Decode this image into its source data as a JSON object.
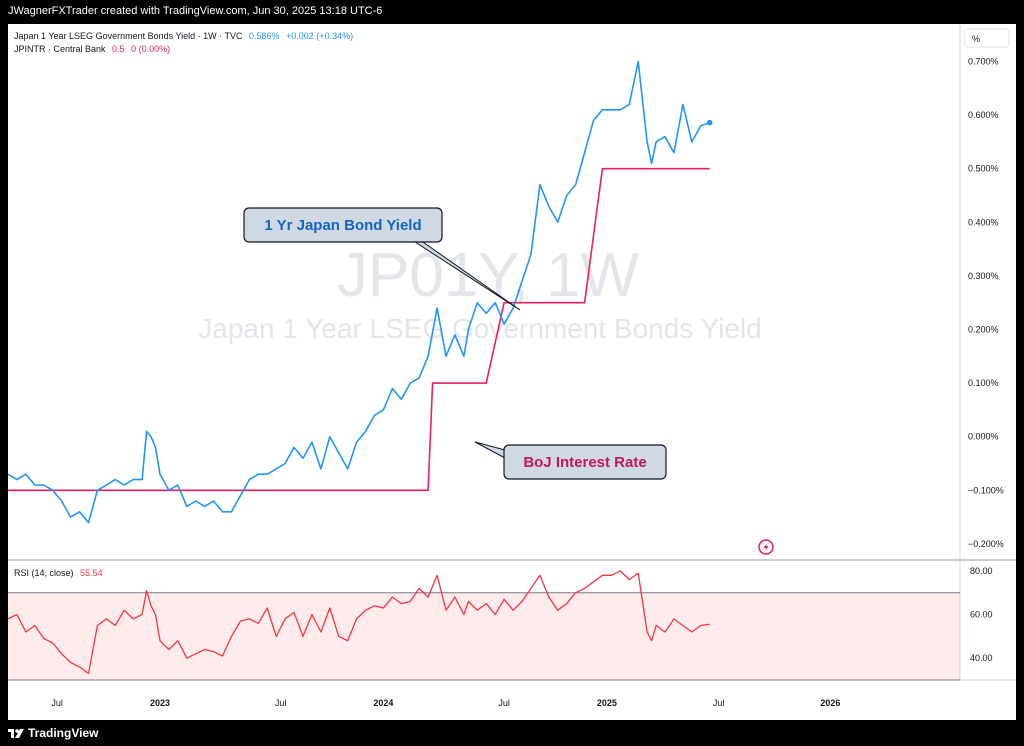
{
  "header": {
    "text": "JWagnerFXTrader created with TradingView.com, Jun 30, 2025 13:18 UTC-6"
  },
  "footer": {
    "logo": "TradingView",
    "logo_icon": "tradingview-logo-icon"
  },
  "legend": {
    "series1_prefix": "Japan 1 Year LSEG Government Bonds Yield · 1W · TVC",
    "series1_value": "0.586%",
    "series1_change": "+0.002 (+0.34%)",
    "series1_color": "#2196f3",
    "series2_prefix": "JPINTR · Central Bank",
    "series2_value": "0.5",
    "series2_change": "0 (0.00%)",
    "series2_color": "#e91e63"
  },
  "watermark": {
    "symbol": "JP01Y, 1W",
    "name": "Japan 1 Year LSEG Government Bonds Yield"
  },
  "annotations": {
    "bond": "1 Yr Japan Bond Yield",
    "boj": "BoJ Interest Rate"
  },
  "scale_unit": "%",
  "rsi": {
    "label": "RSI (14, close)",
    "value": "55.54",
    "color": "#f23645",
    "band": [
      30,
      70
    ],
    "yticks": [
      "80.00",
      "60.00",
      "40.00"
    ]
  },
  "chart_data": [
    {
      "type": "line",
      "title": "Japan 1 Year LSEG Government Bonds Yield · 1W · TVC",
      "ylabel": "%",
      "ylim": [
        -0.23,
        0.77
      ],
      "xlim": [
        2022.32,
        2026.58
      ],
      "x_ticks": [
        "Jul",
        "2023",
        "Jul",
        "2024",
        "Jul",
        "2025",
        "Jul",
        "2026"
      ],
      "y_ticks": [
        "0.700%",
        "0.600%",
        "0.500%",
        "0.400%",
        "0.300%",
        "0.200%",
        "0.100%",
        "0.000%",
        "−0.100%",
        "−0.200%"
      ],
      "series": [
        {
          "name": "Japan 1 Year LSEG Government Bonds Yield",
          "color": "#2196f3",
          "x": [
            2022.32,
            2022.36,
            2022.4,
            2022.44,
            2022.48,
            2022.52,
            2022.56,
            2022.6,
            2022.64,
            2022.68,
            2022.72,
            2022.76,
            2022.8,
            2022.84,
            2022.88,
            2022.92,
            2022.94,
            2022.96,
            2022.98,
            2023.0,
            2023.04,
            2023.08,
            2023.12,
            2023.16,
            2023.2,
            2023.24,
            2023.28,
            2023.32,
            2023.36,
            2023.4,
            2023.44,
            2023.48,
            2023.52,
            2023.56,
            2023.6,
            2023.64,
            2023.68,
            2023.72,
            2023.76,
            2023.8,
            2023.84,
            2023.88,
            2023.92,
            2023.96,
            2024.0,
            2024.04,
            2024.08,
            2024.12,
            2024.16,
            2024.2,
            2024.24,
            2024.28,
            2024.32,
            2024.36,
            2024.38,
            2024.42,
            2024.46,
            2024.5,
            2024.54,
            2024.58,
            2024.62,
            2024.66,
            2024.7,
            2024.74,
            2024.78,
            2024.82,
            2024.86,
            2024.9,
            2024.94,
            2024.98,
            2025.02,
            2025.06,
            2025.1,
            2025.14,
            2025.18,
            2025.2,
            2025.22,
            2025.26,
            2025.3,
            2025.34,
            2025.38,
            2025.42,
            2025.46
          ],
          "values": [
            -0.07,
            -0.08,
            -0.07,
            -0.09,
            -0.09,
            -0.1,
            -0.12,
            -0.15,
            -0.14,
            -0.16,
            -0.1,
            -0.09,
            -0.08,
            -0.09,
            -0.08,
            -0.08,
            0.01,
            0.0,
            -0.02,
            -0.07,
            -0.1,
            -0.09,
            -0.13,
            -0.12,
            -0.13,
            -0.12,
            -0.14,
            -0.14,
            -0.11,
            -0.08,
            -0.07,
            -0.07,
            -0.06,
            -0.05,
            -0.02,
            -0.04,
            -0.01,
            -0.06,
            0.0,
            -0.03,
            -0.06,
            -0.01,
            0.01,
            0.04,
            0.05,
            0.09,
            0.07,
            0.1,
            0.11,
            0.15,
            0.24,
            0.15,
            0.19,
            0.15,
            0.2,
            0.25,
            0.23,
            0.25,
            0.21,
            0.24,
            0.29,
            0.34,
            0.47,
            0.43,
            0.4,
            0.45,
            0.47,
            0.53,
            0.59,
            0.61,
            0.61,
            0.61,
            0.62,
            0.7,
            0.55,
            0.51,
            0.55,
            0.56,
            0.53,
            0.62,
            0.55,
            0.58,
            0.586
          ]
        },
        {
          "name": "JPINTR · Central Bank",
          "color": "#e91e63",
          "x": [
            2022.32,
            2024.2,
            2024.22,
            2024.46,
            2024.54,
            2024.9,
            2024.98,
            2025.46
          ],
          "values": [
            -0.1,
            -0.1,
            0.1,
            0.1,
            0.25,
            0.25,
            0.5,
            0.5
          ]
        }
      ]
    },
    {
      "type": "line",
      "title": "RSI (14, close)",
      "ylim": [
        30,
        85
      ],
      "xlim": [
        2022.32,
        2026.58
      ],
      "y_ticks": [
        "80.00",
        "60.00",
        "40.00"
      ],
      "series": [
        {
          "name": "RSI (14, close)",
          "color": "#f23645",
          "x": [
            2022.32,
            2022.36,
            2022.4,
            2022.44,
            2022.48,
            2022.52,
            2022.56,
            2022.6,
            2022.64,
            2022.68,
            2022.72,
            2022.76,
            2022.8,
            2022.84,
            2022.88,
            2022.92,
            2022.94,
            2022.96,
            2022.98,
            2023.0,
            2023.04,
            2023.08,
            2023.12,
            2023.16,
            2023.2,
            2023.24,
            2023.28,
            2023.32,
            2023.36,
            2023.4,
            2023.44,
            2023.48,
            2023.52,
            2023.56,
            2023.6,
            2023.64,
            2023.68,
            2023.72,
            2023.76,
            2023.8,
            2023.84,
            2023.88,
            2023.92,
            2023.96,
            2024.0,
            2024.04,
            2024.08,
            2024.12,
            2024.16,
            2024.2,
            2024.24,
            2024.28,
            2024.32,
            2024.36,
            2024.38,
            2024.42,
            2024.46,
            2024.5,
            2024.54,
            2024.58,
            2024.62,
            2024.66,
            2024.7,
            2024.74,
            2024.78,
            2024.82,
            2024.86,
            2024.9,
            2024.94,
            2024.98,
            2025.02,
            2025.06,
            2025.1,
            2025.14,
            2025.18,
            2025.2,
            2025.22,
            2025.26,
            2025.3,
            2025.34,
            2025.38,
            2025.42,
            2025.46
          ],
          "values": [
            58,
            60,
            52,
            55,
            49,
            47,
            42,
            38,
            36,
            33,
            55,
            58,
            55,
            62,
            58,
            60,
            71,
            64,
            60,
            48,
            44,
            48,
            40,
            42,
            44,
            43,
            41,
            50,
            57,
            58,
            56,
            63,
            50,
            58,
            61,
            50,
            60,
            52,
            63,
            50,
            48,
            58,
            62,
            64,
            63,
            68,
            65,
            66,
            72,
            68,
            78,
            62,
            68,
            60,
            66,
            62,
            65,
            60,
            67,
            62,
            66,
            72,
            78,
            68,
            62,
            65,
            70,
            72,
            75,
            78,
            78,
            80,
            76,
            79,
            52,
            48,
            55,
            52,
            58,
            55,
            52,
            55,
            55.54
          ]
        }
      ]
    }
  ]
}
